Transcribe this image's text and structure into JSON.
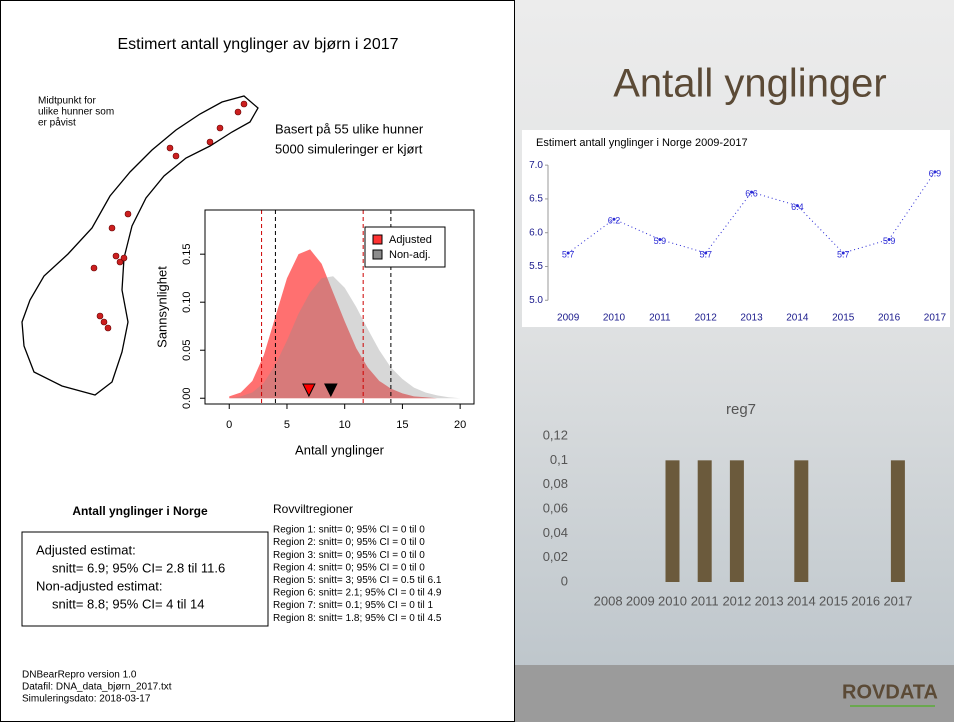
{
  "left_panel": {
    "title": "Estimert antall ynglinger av bjørn i 2017",
    "map_note": [
      "Midtpunkt for",
      "ulike hunner som",
      "er påvist"
    ],
    "info": [
      "Basert på 55 ulike hunner",
      "5000 simuleringer er kjørt"
    ],
    "summary": {
      "title": "Antall ynglinger i Norge",
      "lines": [
        "Adjusted estimat:",
        "snitt= 6.9;  95% CI= 2.8 til 11.6",
        "Non-adjusted estimat:",
        "snitt= 8.8;  95% CI= 4 til 14"
      ]
    },
    "regions": {
      "title": "Rovviltregioner",
      "lines": [
        "Region 1:  snitt= 0;  95% CI = 0 til 0",
        "Region 2:  snitt= 0;  95% CI = 0 til 0",
        "Region 3:  snitt= 0;  95% CI = 0 til 0",
        "Region 4:  snitt= 0;  95% CI = 0 til 0",
        "Region 5:  snitt= 3;  95% CI = 0.5 til 6.1",
        "Region 6:  snitt= 2.1;  95% CI = 0 til 4.9",
        "Region 7:  snitt= 0.1;  95% CI = 0 til 1",
        "Region 8:  snitt= 1.8;  95% CI = 0 til 4.5"
      ]
    },
    "footer": [
      "DNBearRepro version 1.0",
      "Datafil: DNA_data_bjørn_2017.txt",
      "Simuleringsdato: 2018-03-17"
    ]
  },
  "right_panel": {
    "heading": "Antall ynglinger",
    "logo": "ROVDATA"
  },
  "chart_data": [
    {
      "type": "area",
      "xlabel": "Antall ynglinger",
      "ylabel": "Sannsynlighet",
      "x": [
        0,
        1,
        2,
        3,
        4,
        5,
        6,
        7,
        8,
        9,
        10,
        11,
        12,
        13,
        14,
        15,
        16,
        17,
        18,
        19,
        20
      ],
      "series": [
        {
          "name": "Adjusted",
          "color": "#ff3333",
          "values": [
            0.002,
            0.006,
            0.018,
            0.045,
            0.085,
            0.125,
            0.15,
            0.155,
            0.14,
            0.11,
            0.08,
            0.052,
            0.032,
            0.018,
            0.01,
            0.005,
            0.002,
            0.001,
            0,
            0,
            0
          ]
        },
        {
          "name": "Non-adj.",
          "color": "#8c8c8c",
          "values": [
            0,
            0.002,
            0.006,
            0.016,
            0.035,
            0.06,
            0.088,
            0.11,
            0.125,
            0.127,
            0.115,
            0.095,
            0.072,
            0.05,
            0.032,
            0.02,
            0.011,
            0.006,
            0.003,
            0.001,
            0
          ]
        }
      ],
      "xlim": [
        -2.1,
        21.2
      ],
      "ylim": [
        -0.006,
        0.196
      ],
      "xticks": [
        0,
        5,
        10,
        15,
        20
      ],
      "yticks": [
        {
          "value": 0,
          "label": "0.00"
        },
        {
          "value": 0.05,
          "label": "0.05"
        },
        {
          "value": 0.1,
          "label": "0.10"
        },
        {
          "value": 0.15,
          "label": "0.15"
        }
      ],
      "ci_lines": [
        {
          "value": 2.8,
          "color": "#cc0000"
        },
        {
          "value": 11.6,
          "color": "#cc0000"
        },
        {
          "value": 4,
          "color": "#000000"
        },
        {
          "value": 14,
          "color": "#000000"
        }
      ],
      "means": [
        {
          "value": 6.9,
          "color": "#ff0000"
        },
        {
          "value": 8.8,
          "color": "#000000"
        }
      ],
      "legend": "top-right"
    },
    {
      "type": "line",
      "title": "Estimert antall ynglinger i Norge 2009-2017",
      "color": "#2b2bd6",
      "x": [
        2009,
        2010,
        2011,
        2012,
        2013,
        2014,
        2015,
        2016,
        2017
      ],
      "values": [
        5.7,
        6.2,
        5.9,
        5.7,
        6.6,
        6.4,
        5.7,
        5.9,
        6.9
      ],
      "xlim": [
        2008.56,
        2017.22
      ],
      "xticks": [
        2009,
        2010,
        2011,
        2012,
        2013,
        2014,
        2015,
        2016,
        2017
      ],
      "ylim": [
        4.93,
        7.15
      ],
      "yticks": [
        {
          "value": 5,
          "label": "5.0"
        },
        {
          "value": 5.5,
          "label": "5.5"
        },
        {
          "value": 6,
          "label": "6.0"
        },
        {
          "value": 6.5,
          "label": "6.5"
        },
        {
          "value": 7,
          "label": "7.0"
        }
      ]
    },
    {
      "type": "bar",
      "title": "reg7",
      "color": "#6b5a3c",
      "categories": [
        "2008",
        "2009",
        "2010",
        "2011",
        "2012",
        "2013",
        "2014",
        "2015",
        "2016",
        "2017"
      ],
      "values": [
        0,
        0,
        0.1,
        0.1,
        0.1,
        0,
        0.1,
        0,
        0,
        0.1
      ],
      "ylim": [
        0,
        0.12
      ],
      "yticks": [
        0,
        {
          "value": 0.02,
          "label": "0,02"
        },
        {
          "value": 0.04,
          "label": "0,04"
        },
        {
          "value": 0.06,
          "label": "0,06"
        },
        {
          "value": 0.08,
          "label": "0,08"
        },
        {
          "value": 0.1,
          "label": "0,1"
        },
        {
          "value": 0.12,
          "label": "0,12"
        }
      ]
    }
  ]
}
